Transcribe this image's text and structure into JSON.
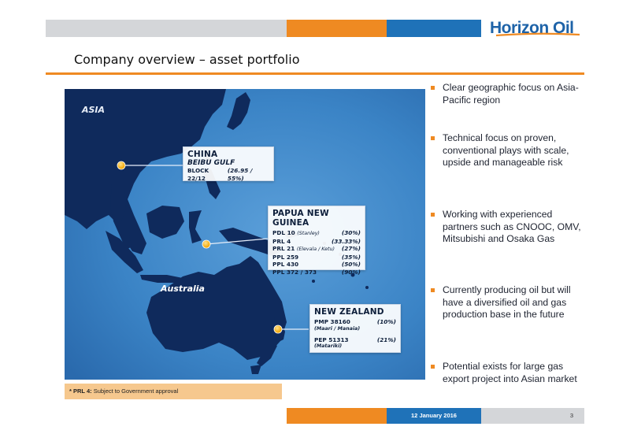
{
  "header": {
    "logo_text": "Horizon Oil",
    "title": "Company overview – asset portfolio"
  },
  "map": {
    "label_asia": "ASIA",
    "label_australia": "Australia",
    "china": {
      "title": "CHINA",
      "subtitle": "BEIBU GULF",
      "rows": [
        {
          "name": "BLOCK 22/12",
          "note": "",
          "pct": "(26.95 / 55%)"
        }
      ]
    },
    "png": {
      "title": "PAPUA NEW GUINEA",
      "rows": [
        {
          "name": "PDL 10",
          "note": "(Stanley)",
          "pct": "(30%)"
        },
        {
          "name": "PRL 4",
          "note": "",
          "pct": "(33.33%)"
        },
        {
          "name": "PRL 21",
          "note": "(Elevala / Ketu)",
          "pct": "(27%)"
        },
        {
          "name": "PPL 259",
          "note": "",
          "pct": "(35%)"
        },
        {
          "name": "PPL 430",
          "note": "",
          "pct": "(50%)"
        },
        {
          "name": "PPL 372 / 373",
          "note": "",
          "pct": "(90%)"
        }
      ]
    },
    "nz": {
      "title": "NEW ZEALAND",
      "rows": [
        {
          "name": "PMP 38160",
          "note": "(Maari / Manaia)",
          "pct": "(10%)"
        },
        {
          "name": "PEP 51313",
          "note": "(Matariki)",
          "pct": "(21%)"
        }
      ]
    }
  },
  "footnote": {
    "bold": "* PRL 4:",
    "text": " Subject to Government approval"
  },
  "bullets": [
    "Clear geographic focus on Asia-Pacific region",
    "Technical focus on proven, conventional plays with scale, upside and manageable risk",
    "Working with experienced partners such as CNOOC, OMV, Mitsubishi and Osaka Gas",
    "Currently producing oil but will have a diversified oil and gas production base in the future",
    "Potential exists for large gas export project into Asian market"
  ],
  "footer": {
    "date": "12 January 2016",
    "page": "3"
  },
  "colors": {
    "accent_orange": "#ef8a22",
    "accent_blue": "#1f72b8",
    "band_grey": "#d4d6d9",
    "ocean": "#2a73b7",
    "land": "#0f2a5c"
  }
}
